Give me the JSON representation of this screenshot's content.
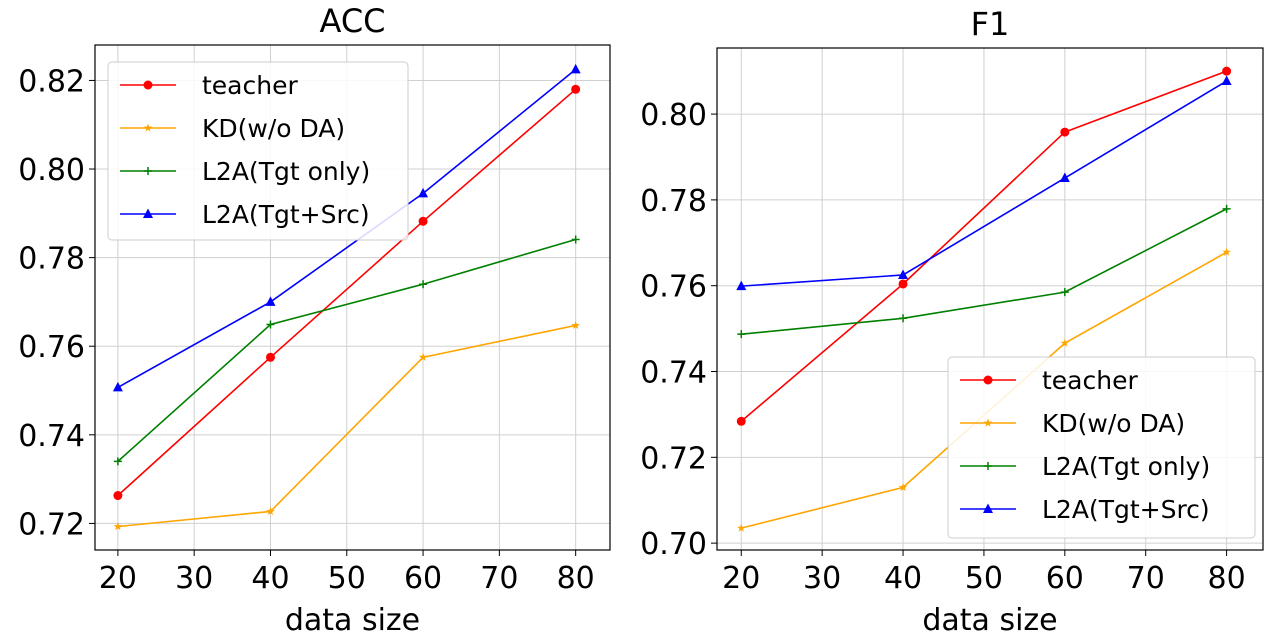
{
  "chart_data": [
    {
      "type": "line",
      "title": "ACC",
      "xlabel": "data size",
      "ylabel": "",
      "x": [
        20,
        40,
        60,
        80
      ],
      "xlim": [
        17,
        84.5
      ],
      "ylim": [
        0.714,
        0.828
      ],
      "xticks": [
        20,
        30,
        40,
        50,
        60,
        70,
        80
      ],
      "yticks": [
        0.72,
        0.74,
        0.76,
        0.78,
        0.8,
        0.82
      ],
      "ytick_labels": [
        "0.72",
        "0.74",
        "0.76",
        "0.78",
        "0.80",
        "0.82"
      ],
      "grid": true,
      "legend_position": "top-left",
      "series": [
        {
          "name": "teacher",
          "color": "#ff0000",
          "marker": "circle",
          "values": [
            0.7263,
            0.7575,
            0.7882,
            0.818
          ]
        },
        {
          "name": "KD(w/o DA)",
          "color": "#ffa500",
          "marker": "star",
          "values": [
            0.7193,
            0.7227,
            0.7575,
            0.7647
          ]
        },
        {
          "name": "L2A(Tgt only)",
          "color": "#008000",
          "marker": "plus",
          "values": [
            0.734,
            0.7649,
            0.774,
            0.7841
          ]
        },
        {
          "name": "L2A(Tgt+Src)",
          "color": "#0000ff",
          "marker": "triangle",
          "values": [
            0.7507,
            0.77,
            0.7945,
            0.8225
          ]
        }
      ]
    },
    {
      "type": "line",
      "title": "F1",
      "xlabel": "data size",
      "ylabel": "",
      "x": [
        20,
        40,
        60,
        80
      ],
      "xlim": [
        17,
        84.5
      ],
      "ylim": [
        0.6984,
        0.8154
      ],
      "xticks": [
        20,
        30,
        40,
        50,
        60,
        70,
        80
      ],
      "yticks": [
        0.7,
        0.72,
        0.74,
        0.76,
        0.78,
        0.8
      ],
      "ytick_labels": [
        "0.70",
        "0.72",
        "0.74",
        "0.76",
        "0.78",
        "0.80"
      ],
      "grid": true,
      "legend_position": "bottom-right",
      "series": [
        {
          "name": "teacher",
          "color": "#ff0000",
          "marker": "circle",
          "values": [
            0.7284,
            0.7604,
            0.7958,
            0.81
          ]
        },
        {
          "name": "KD(w/o DA)",
          "color": "#ffa500",
          "marker": "star",
          "values": [
            0.7035,
            0.713,
            0.7466,
            0.7678
          ]
        },
        {
          "name": "L2A(Tgt only)",
          "color": "#008000",
          "marker": "plus",
          "values": [
            0.7487,
            0.7524,
            0.7585,
            0.7779
          ]
        },
        {
          "name": "L2A(Tgt+Src)",
          "color": "#0000ff",
          "marker": "triangle",
          "values": [
            0.7599,
            0.7625,
            0.7851,
            0.8077
          ]
        }
      ]
    }
  ]
}
